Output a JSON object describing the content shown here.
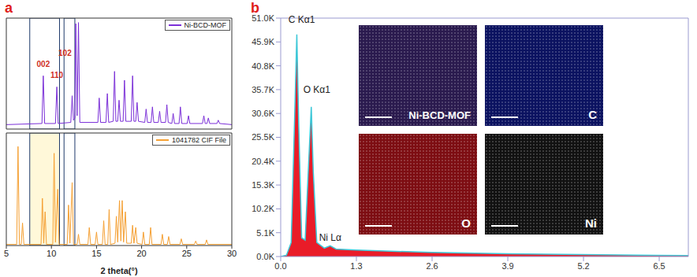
{
  "chart_data": [
    {
      "type": "line",
      "panel": "a",
      "x": [
        5,
        8.95,
        9.1,
        9.25,
        10.45,
        10.6,
        10.75,
        12.15,
        12.3,
        12.45,
        12.6,
        12.7,
        12.85,
        13.0,
        13.15,
        15.15,
        15.3,
        15.45,
        16.05,
        16.2,
        16.35,
        16.85,
        17.0,
        17.15,
        17.35,
        17.5,
        17.65,
        17.95,
        18.1,
        18.25,
        18.85,
        19.0,
        19.15,
        19.35,
        19.5,
        19.65,
        20.35,
        20.5,
        20.65,
        21.05,
        21.2,
        21.35,
        21.85,
        22.0,
        22.15,
        22.65,
        22.8,
        22.95,
        23.35,
        23.5,
        23.65,
        24.15,
        24.3,
        24.45,
        25.05,
        25.2,
        25.35,
        26.75,
        26.9,
        27.05,
        27.25,
        27.4,
        27.55,
        28.35,
        28.5,
        28.65,
        30
      ],
      "series": [
        {
          "name": "Ni-BCD-MOF",
          "color": "#7b2fd8",
          "values": [
            4,
            5,
            48,
            5,
            5,
            38,
            5,
            6,
            30,
            8,
            10,
            95,
            12,
            96,
            6,
            6,
            28,
            6,
            6,
            32,
            6,
            7,
            52,
            7,
            7,
            26,
            7,
            7,
            44,
            7,
            7,
            48,
            7,
            7,
            24,
            7,
            6,
            18,
            6,
            6,
            20,
            6,
            6,
            16,
            6,
            6,
            22,
            6,
            5,
            14,
            5,
            5,
            20,
            5,
            5,
            12,
            5,
            5,
            12,
            5,
            5,
            10,
            5,
            5,
            8,
            5,
            4
          ]
        }
      ],
      "xlim": [
        5,
        30
      ],
      "xticks": [
        5,
        10,
        15,
        20,
        25,
        30
      ],
      "ylim": [
        0,
        100
      ],
      "tick_labels": false,
      "legend": "upper right",
      "annotations": [
        {
          "text": "002",
          "x": 9.1,
          "y": 52
        },
        {
          "text": "110",
          "x": 10.6,
          "y": 42
        },
        {
          "text": "102",
          "x": 11.5,
          "y": 62
        }
      ],
      "highlights": [
        [
          7.6,
          10.9
        ],
        [
          11.4,
          12.6
        ]
      ]
    },
    {
      "type": "line",
      "x": [
        5,
        6.15,
        6.3,
        6.45,
        6.65,
        6.8,
        6.95,
        8.85,
        9.0,
        9.15,
        9.3,
        9.45,
        10.15,
        10.3,
        10.45,
        10.7,
        10.85,
        11.75,
        11.9,
        12.05,
        12.3,
        12.45,
        12.85,
        13.0,
        13.15,
        14.05,
        14.2,
        14.35,
        14.85,
        15.0,
        15.15,
        15.65,
        15.8,
        15.95,
        16.25,
        16.4,
        16.55,
        17.05,
        17.2,
        17.35,
        17.55,
        17.7,
        17.85,
        18.0,
        18.2,
        18.35,
        18.85,
        19.0,
        19.15,
        19.35,
        19.5,
        20.05,
        20.2,
        20.35,
        20.85,
        21.0,
        21.15,
        22.15,
        22.3,
        22.45,
        22.85,
        23.0,
        23.15,
        24.25,
        24.4,
        24.55,
        25.85,
        26.0,
        26.15,
        27.05,
        27.2,
        27.35,
        30
      ],
      "series": [
        {
          "name": "1041782 CIF File",
          "color": "#f5a033",
          "values": [
            1,
            1,
            88,
            1,
            1,
            20,
            1,
            1,
            42,
            2,
            30,
            1,
            1,
            82,
            3,
            50,
            1,
            1,
            36,
            2,
            56,
            1,
            1,
            10,
            1,
            1,
            16,
            1,
            1,
            12,
            1,
            1,
            22,
            1,
            1,
            32,
            1,
            2,
            26,
            3,
            40,
            4,
            40,
            3,
            30,
            2,
            2,
            18,
            2,
            16,
            2,
            1,
            12,
            1,
            1,
            16,
            1,
            1,
            10,
            1,
            1,
            8,
            1,
            1,
            6,
            1,
            1,
            4,
            1,
            1,
            5,
            1,
            1
          ]
        }
      ],
      "xlim": [
        5,
        30
      ],
      "xticks": [
        5,
        10,
        15,
        20,
        25,
        30
      ],
      "ylim": [
        0,
        100
      ],
      "x_label": "2 theta(°)",
      "tick_labels": "x",
      "legend": "upper right",
      "highlights": [
        [
          7.6,
          10.9
        ],
        [
          11.4,
          12.6
        ]
      ]
    },
    {
      "type": "area",
      "panel": "b",
      "x": [
        0,
        0.1,
        0.18,
        0.24,
        0.277,
        0.31,
        0.36,
        0.42,
        0.48,
        0.525,
        0.56,
        0.62,
        0.75,
        0.85,
        0.95,
        1.3,
        2.0,
        2.6,
        3.9,
        5.2,
        6.5,
        7.0
      ],
      "values": [
        0,
        300,
        3000,
        30000,
        47500,
        28000,
        4000,
        3500,
        20000,
        32000,
        18000,
        3000,
        1800,
        2300,
        1600,
        1400,
        1100,
        900,
        600,
        400,
        250,
        200
      ],
      "color": "#e8101c",
      "xlim": [
        0,
        7
      ],
      "xticks": [
        {
          "value": 0,
          "label": "0.0"
        },
        1.3,
        2.6,
        3.9,
        5.2,
        6.5
      ],
      "ylim": [
        0,
        51000
      ],
      "yticks": [
        {
          "value": 0,
          "label": "0.0K"
        },
        {
          "value": 5100,
          "label": "5.1K"
        },
        {
          "value": 10200,
          "label": "10.2K"
        },
        {
          "value": 15300,
          "label": "15.3K"
        },
        {
          "value": 20400,
          "label": "20.4K"
        },
        {
          "value": 25500,
          "label": "25.5K"
        },
        {
          "value": 30600,
          "label": "30.6K"
        },
        {
          "value": 35700,
          "label": "35.7K"
        },
        {
          "value": 40800,
          "label": "40.8K"
        },
        {
          "value": 45900,
          "label": "45.9K"
        },
        {
          "value": 51000,
          "label": "51.0K"
        }
      ],
      "annotations": [
        {
          "text": "C Kα1",
          "x": 0.36,
          "y": 49000
        },
        {
          "text": "O Kα1",
          "x": 0.62,
          "y": 34000
        },
        {
          "text": "Ni Lα",
          "x": 0.85,
          "y": 2300
        }
      ]
    }
  ],
  "maps": [
    {
      "label": "Ni-BCD-MOF",
      "color": "#2a1a4e"
    },
    {
      "label": "C",
      "color": "#0b1260"
    },
    {
      "label": "O",
      "color": "#7d0d12"
    },
    {
      "label": "Ni",
      "color": "#111111"
    }
  ]
}
